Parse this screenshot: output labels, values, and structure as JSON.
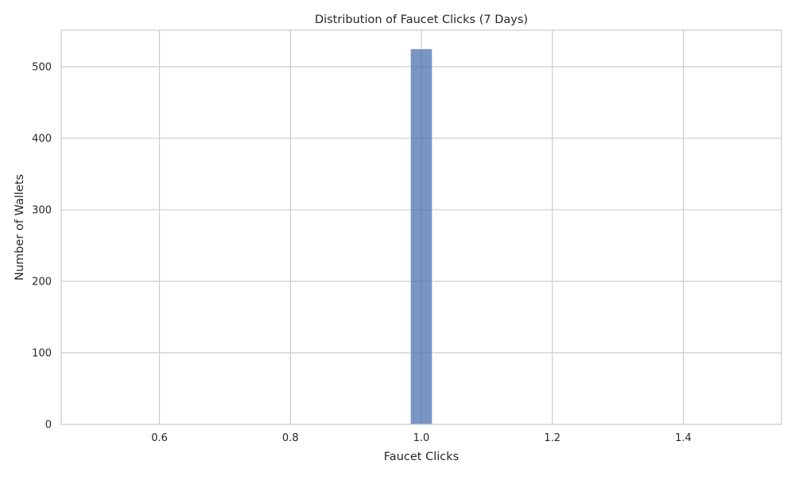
{
  "chart_data": {
    "type": "bar",
    "title": "Distribution of Faucet Clicks (7 Days)",
    "xlabel": "Faucet Clicks",
    "ylabel": "Number of Wallets",
    "xlim": [
      0.45,
      1.55
    ],
    "ylim": [
      0,
      551
    ],
    "x_ticks": [
      {
        "value": 0.6,
        "label": "0.6"
      },
      {
        "value": 0.8,
        "label": "0.8"
      },
      {
        "value": 1.0,
        "label": "1.0"
      },
      {
        "value": 1.2,
        "label": "1.2"
      },
      {
        "value": 1.4,
        "label": "1.4"
      }
    ],
    "y_ticks": [
      {
        "value": 0,
        "label": "0"
      },
      {
        "value": 100,
        "label": "100"
      },
      {
        "value": 200,
        "label": "200"
      },
      {
        "value": 300,
        "label": "300"
      },
      {
        "value": 400,
        "label": "400"
      },
      {
        "value": 500,
        "label": "500"
      }
    ],
    "bars": [
      {
        "x_start": 0.9833,
        "x_end": 1.0167,
        "value": 525
      }
    ],
    "grid": true,
    "colors": {
      "bar": "#4c72b0",
      "grid": "#cccccc",
      "frame": "#cccccc"
    }
  }
}
